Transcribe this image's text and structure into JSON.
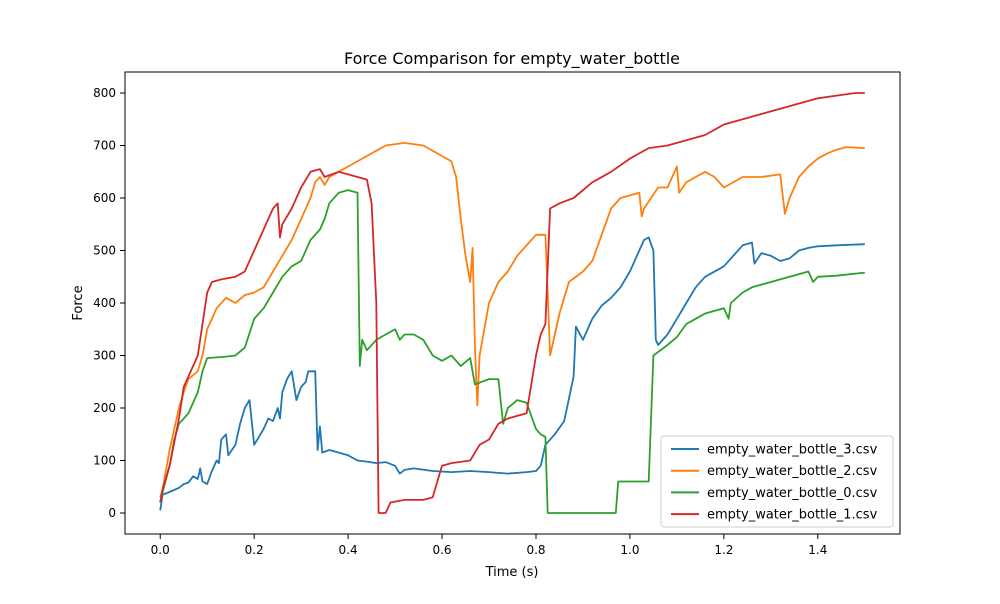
{
  "chart_data": {
    "type": "line",
    "title": "Force Comparison for empty_water_bottle",
    "xlabel": "Time (s)",
    "ylabel": "Force",
    "xlim": [
      -0.075,
      1.575
    ],
    "ylim": [
      -40,
      840
    ],
    "xticks": [
      0.0,
      0.2,
      0.4,
      0.6,
      0.8,
      1.0,
      1.2,
      1.4
    ],
    "xtick_labels": [
      "0.0",
      "0.2",
      "0.4",
      "0.6",
      "0.8",
      "1.0",
      "1.2",
      "1.4"
    ],
    "yticks": [
      0,
      100,
      200,
      300,
      400,
      500,
      600,
      700,
      800
    ],
    "ytick_labels": [
      "0",
      "100",
      "200",
      "300",
      "400",
      "500",
      "600",
      "700",
      "800"
    ],
    "grid": false,
    "legend_position": "lower-right",
    "series": [
      {
        "name": "empty_water_bottle_3.csv",
        "color": "#1f77b4",
        "points": [
          [
            0.0,
            5
          ],
          [
            0.005,
            35
          ],
          [
            0.02,
            40
          ],
          [
            0.04,
            48
          ],
          [
            0.05,
            55
          ],
          [
            0.06,
            58
          ],
          [
            0.07,
            70
          ],
          [
            0.08,
            65
          ],
          [
            0.085,
            85
          ],
          [
            0.09,
            60
          ],
          [
            0.1,
            55
          ],
          [
            0.11,
            80
          ],
          [
            0.12,
            100
          ],
          [
            0.125,
            95
          ],
          [
            0.13,
            140
          ],
          [
            0.14,
            150
          ],
          [
            0.145,
            110
          ],
          [
            0.16,
            130
          ],
          [
            0.17,
            170
          ],
          [
            0.18,
            200
          ],
          [
            0.19,
            215
          ],
          [
            0.2,
            130
          ],
          [
            0.21,
            145
          ],
          [
            0.22,
            160
          ],
          [
            0.23,
            180
          ],
          [
            0.24,
            175
          ],
          [
            0.25,
            200
          ],
          [
            0.255,
            180
          ],
          [
            0.26,
            230
          ],
          [
            0.27,
            255
          ],
          [
            0.28,
            270
          ],
          [
            0.29,
            215
          ],
          [
            0.3,
            240
          ],
          [
            0.31,
            250
          ],
          [
            0.315,
            270
          ],
          [
            0.33,
            270
          ],
          [
            0.335,
            120
          ],
          [
            0.34,
            165
          ],
          [
            0.345,
            115
          ],
          [
            0.36,
            120
          ],
          [
            0.4,
            110
          ],
          [
            0.42,
            100
          ],
          [
            0.44,
            98
          ],
          [
            0.46,
            95
          ],
          [
            0.48,
            97
          ],
          [
            0.5,
            90
          ],
          [
            0.51,
            75
          ],
          [
            0.52,
            82
          ],
          [
            0.54,
            85
          ],
          [
            0.58,
            80
          ],
          [
            0.62,
            78
          ],
          [
            0.66,
            80
          ],
          [
            0.7,
            78
          ],
          [
            0.74,
            75
          ],
          [
            0.78,
            78
          ],
          [
            0.8,
            80
          ],
          [
            0.81,
            90
          ],
          [
            0.82,
            130
          ],
          [
            0.84,
            150
          ],
          [
            0.86,
            175
          ],
          [
            0.88,
            260
          ],
          [
            0.885,
            355
          ],
          [
            0.9,
            330
          ],
          [
            0.92,
            370
          ],
          [
            0.94,
            395
          ],
          [
            0.96,
            410
          ],
          [
            0.98,
            430
          ],
          [
            1.0,
            460
          ],
          [
            1.02,
            500
          ],
          [
            1.03,
            520
          ],
          [
            1.04,
            525
          ],
          [
            1.05,
            500
          ],
          [
            1.055,
            330
          ],
          [
            1.06,
            320
          ],
          [
            1.08,
            340
          ],
          [
            1.1,
            370
          ],
          [
            1.12,
            400
          ],
          [
            1.14,
            430
          ],
          [
            1.16,
            450
          ],
          [
            1.2,
            470
          ],
          [
            1.22,
            490
          ],
          [
            1.24,
            510
          ],
          [
            1.26,
            515
          ],
          [
            1.265,
            475
          ],
          [
            1.28,
            495
          ],
          [
            1.3,
            490
          ],
          [
            1.32,
            480
          ],
          [
            1.34,
            485
          ],
          [
            1.36,
            500
          ],
          [
            1.38,
            505
          ],
          [
            1.4,
            508
          ],
          [
            1.44,
            510
          ],
          [
            1.5,
            512
          ]
        ]
      },
      {
        "name": "empty_water_bottle_2.csv",
        "color": "#ff7f0e",
        "points": [
          [
            0.0,
            30
          ],
          [
            0.005,
            45
          ],
          [
            0.02,
            120
          ],
          [
            0.04,
            200
          ],
          [
            0.05,
            230
          ],
          [
            0.06,
            255
          ],
          [
            0.08,
            270
          ],
          [
            0.09,
            300
          ],
          [
            0.1,
            350
          ],
          [
            0.12,
            390
          ],
          [
            0.14,
            410
          ],
          [
            0.16,
            400
          ],
          [
            0.18,
            415
          ],
          [
            0.2,
            420
          ],
          [
            0.22,
            430
          ],
          [
            0.24,
            460
          ],
          [
            0.26,
            490
          ],
          [
            0.28,
            520
          ],
          [
            0.3,
            560
          ],
          [
            0.32,
            600
          ],
          [
            0.33,
            630
          ],
          [
            0.34,
            640
          ],
          [
            0.35,
            625
          ],
          [
            0.36,
            640
          ],
          [
            0.38,
            650
          ],
          [
            0.4,
            660
          ],
          [
            0.44,
            680
          ],
          [
            0.48,
            700
          ],
          [
            0.52,
            705
          ],
          [
            0.56,
            700
          ],
          [
            0.6,
            680
          ],
          [
            0.62,
            670
          ],
          [
            0.63,
            640
          ],
          [
            0.64,
            560
          ],
          [
            0.65,
            490
          ],
          [
            0.66,
            440
          ],
          [
            0.665,
            505
          ],
          [
            0.67,
            320
          ],
          [
            0.675,
            205
          ],
          [
            0.68,
            300
          ],
          [
            0.7,
            400
          ],
          [
            0.72,
            440
          ],
          [
            0.74,
            460
          ],
          [
            0.76,
            490
          ],
          [
            0.78,
            510
          ],
          [
            0.8,
            530
          ],
          [
            0.82,
            530
          ],
          [
            0.83,
            300
          ],
          [
            0.85,
            380
          ],
          [
            0.87,
            440
          ],
          [
            0.9,
            460
          ],
          [
            0.92,
            480
          ],
          [
            0.94,
            530
          ],
          [
            0.96,
            580
          ],
          [
            0.98,
            600
          ],
          [
            1.0,
            605
          ],
          [
            1.02,
            610
          ],
          [
            1.025,
            565
          ],
          [
            1.03,
            580
          ],
          [
            1.06,
            620
          ],
          [
            1.08,
            620
          ],
          [
            1.1,
            660
          ],
          [
            1.105,
            610
          ],
          [
            1.12,
            630
          ],
          [
            1.14,
            640
          ],
          [
            1.16,
            650
          ],
          [
            1.18,
            640
          ],
          [
            1.2,
            620
          ],
          [
            1.24,
            640
          ],
          [
            1.28,
            640
          ],
          [
            1.32,
            645
          ],
          [
            1.33,
            570
          ],
          [
            1.34,
            600
          ],
          [
            1.36,
            640
          ],
          [
            1.38,
            660
          ],
          [
            1.4,
            675
          ],
          [
            1.42,
            685
          ],
          [
            1.44,
            692
          ],
          [
            1.46,
            697
          ],
          [
            1.5,
            695
          ]
        ]
      },
      {
        "name": "empty_water_bottle_0.csv",
        "color": "#2ca02c",
        "points": [
          [
            0.0,
            20
          ],
          [
            0.005,
            40
          ],
          [
            0.02,
            90
          ],
          [
            0.03,
            140
          ],
          [
            0.04,
            170
          ],
          [
            0.06,
            190
          ],
          [
            0.08,
            230
          ],
          [
            0.09,
            270
          ],
          [
            0.1,
            295
          ],
          [
            0.14,
            298
          ],
          [
            0.16,
            300
          ],
          [
            0.18,
            315
          ],
          [
            0.2,
            370
          ],
          [
            0.22,
            390
          ],
          [
            0.24,
            420
          ],
          [
            0.26,
            450
          ],
          [
            0.28,
            470
          ],
          [
            0.3,
            480
          ],
          [
            0.32,
            520
          ],
          [
            0.34,
            540
          ],
          [
            0.35,
            560
          ],
          [
            0.36,
            590
          ],
          [
            0.38,
            610
          ],
          [
            0.4,
            615
          ],
          [
            0.42,
            610
          ],
          [
            0.425,
            280
          ],
          [
            0.43,
            330
          ],
          [
            0.44,
            310
          ],
          [
            0.46,
            330
          ],
          [
            0.48,
            340
          ],
          [
            0.5,
            350
          ],
          [
            0.51,
            330
          ],
          [
            0.52,
            340
          ],
          [
            0.54,
            340
          ],
          [
            0.56,
            330
          ],
          [
            0.58,
            300
          ],
          [
            0.6,
            290
          ],
          [
            0.62,
            300
          ],
          [
            0.64,
            280
          ],
          [
            0.66,
            295
          ],
          [
            0.67,
            245
          ],
          [
            0.7,
            255
          ],
          [
            0.72,
            255
          ],
          [
            0.73,
            170
          ],
          [
            0.74,
            200
          ],
          [
            0.76,
            215
          ],
          [
            0.78,
            210
          ],
          [
            0.8,
            160
          ],
          [
            0.81,
            150
          ],
          [
            0.82,
            145
          ],
          [
            0.825,
            0
          ],
          [
            0.9,
            0
          ],
          [
            0.97,
            0
          ],
          [
            0.975,
            60
          ],
          [
            1.04,
            60
          ],
          [
            1.05,
            300
          ],
          [
            1.08,
            320
          ],
          [
            1.1,
            335
          ],
          [
            1.12,
            360
          ],
          [
            1.14,
            370
          ],
          [
            1.16,
            380
          ],
          [
            1.18,
            385
          ],
          [
            1.2,
            390
          ],
          [
            1.21,
            370
          ],
          [
            1.215,
            400
          ],
          [
            1.24,
            420
          ],
          [
            1.26,
            430
          ],
          [
            1.28,
            435
          ],
          [
            1.3,
            440
          ],
          [
            1.32,
            445
          ],
          [
            1.34,
            450
          ],
          [
            1.36,
            455
          ],
          [
            1.38,
            460
          ],
          [
            1.39,
            440
          ],
          [
            1.4,
            450
          ],
          [
            1.44,
            452
          ],
          [
            1.5,
            458
          ]
        ]
      },
      {
        "name": "empty_water_bottle_1.csv",
        "color": "#d62728",
        "points": [
          [
            0.0,
            20
          ],
          [
            0.005,
            45
          ],
          [
            0.02,
            90
          ],
          [
            0.04,
            180
          ],
          [
            0.05,
            240
          ],
          [
            0.06,
            260
          ],
          [
            0.08,
            300
          ],
          [
            0.1,
            420
          ],
          [
            0.11,
            440
          ],
          [
            0.13,
            445
          ],
          [
            0.16,
            450
          ],
          [
            0.18,
            460
          ],
          [
            0.2,
            500
          ],
          [
            0.22,
            540
          ],
          [
            0.24,
            580
          ],
          [
            0.25,
            590
          ],
          [
            0.255,
            525
          ],
          [
            0.26,
            550
          ],
          [
            0.28,
            580
          ],
          [
            0.3,
            620
          ],
          [
            0.32,
            650
          ],
          [
            0.34,
            655
          ],
          [
            0.35,
            640
          ],
          [
            0.38,
            650
          ],
          [
            0.4,
            645
          ],
          [
            0.44,
            635
          ],
          [
            0.45,
            590
          ],
          [
            0.46,
            400
          ],
          [
            0.465,
            0
          ],
          [
            0.48,
            0
          ],
          [
            0.49,
            20
          ],
          [
            0.52,
            25
          ],
          [
            0.56,
            25
          ],
          [
            0.58,
            30
          ],
          [
            0.6,
            90
          ],
          [
            0.62,
            95
          ],
          [
            0.66,
            100
          ],
          [
            0.68,
            130
          ],
          [
            0.7,
            140
          ],
          [
            0.72,
            170
          ],
          [
            0.74,
            180
          ],
          [
            0.76,
            185
          ],
          [
            0.78,
            190
          ],
          [
            0.8,
            300
          ],
          [
            0.81,
            340
          ],
          [
            0.82,
            360
          ],
          [
            0.83,
            580
          ],
          [
            0.85,
            590
          ],
          [
            0.88,
            600
          ],
          [
            0.92,
            630
          ],
          [
            0.96,
            650
          ],
          [
            1.0,
            675
          ],
          [
            1.04,
            695
          ],
          [
            1.08,
            700
          ],
          [
            1.12,
            710
          ],
          [
            1.16,
            720
          ],
          [
            1.2,
            740
          ],
          [
            1.24,
            750
          ],
          [
            1.28,
            760
          ],
          [
            1.32,
            770
          ],
          [
            1.36,
            780
          ],
          [
            1.4,
            790
          ],
          [
            1.44,
            795
          ],
          [
            1.48,
            800
          ],
          [
            1.5,
            800
          ]
        ]
      }
    ]
  }
}
